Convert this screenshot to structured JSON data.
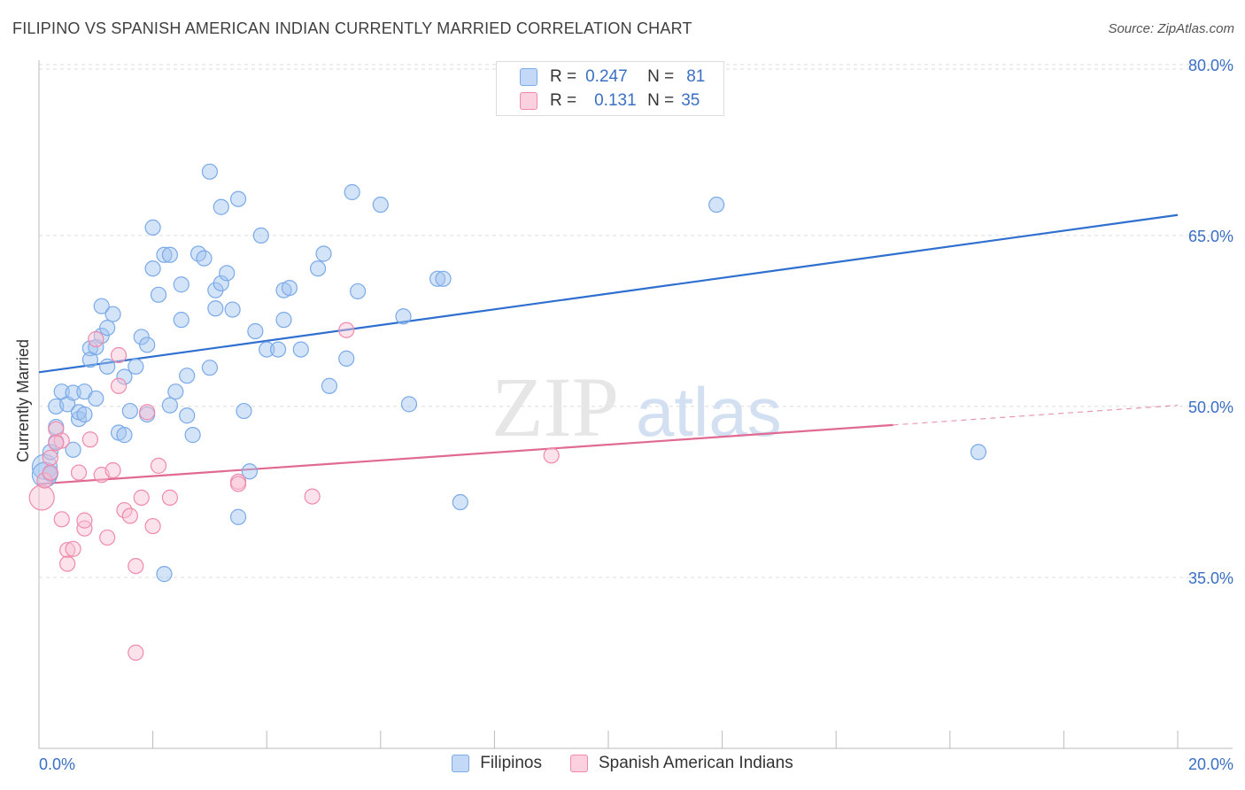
{
  "title": "FILIPINO VS SPANISH AMERICAN INDIAN CURRENTLY MARRIED CORRELATION CHART",
  "source": "Source: ZipAtlas.com",
  "watermark": {
    "zip": "ZIP",
    "atlas": "atlas"
  },
  "legend_top": {
    "rows": [
      {
        "r_label": "R =",
        "r_value": "0.247",
        "n_label": "N =",
        "n_value": "81",
        "color": "#7aaae8"
      },
      {
        "r_label": "R =",
        "r_value": "0.131",
        "n_label": "N =",
        "n_value": "35",
        "color": "#f08aaa"
      }
    ]
  },
  "legend_bottom": [
    {
      "label": "Filipinos",
      "color": "#7aaae8"
    },
    {
      "label": "Spanish American Indians",
      "color": "#f08aaa"
    }
  ],
  "chart_data": {
    "type": "scatter",
    "title": "FILIPINO VS SPANISH AMERICAN INDIAN CURRENTLY MARRIED CORRELATION CHART",
    "xlabel": "",
    "ylabel": "Currently Married",
    "xlim": [
      0,
      20
    ],
    "ylim": [
      20,
      81
    ],
    "x_tick_labels": [
      "0.0%",
      "20.0%"
    ],
    "y_ticks": [
      35,
      50,
      65,
      80
    ],
    "y_tick_labels": [
      "35.0%",
      "50.0%",
      "65.0%",
      "80.0%"
    ],
    "grid": "horizontal dashed",
    "legend_position": "top-center and bottom",
    "colors": {
      "filipinos": "#7aaae8",
      "spanish_american_indians": "#f08aaa",
      "filipinos_line": "#2f6fcf",
      "spanish_line": "#e06a92",
      "y_tick_text": "#3a6fc4"
    },
    "series": [
      {
        "name": "Filipinos",
        "r": 0.247,
        "n": 81,
        "trend": {
          "x0": 0,
          "y0": 53.0,
          "x1": 20,
          "y1": 66.8,
          "dashed_from": null
        },
        "points": [
          [
            0.1,
            44.7,
            "l"
          ],
          [
            0.1,
            44.0,
            "l"
          ],
          [
            0.2,
            46.0
          ],
          [
            0.2,
            44.1
          ],
          [
            0.3,
            50.0
          ],
          [
            0.3,
            46.9
          ],
          [
            0.3,
            48.2
          ],
          [
            0.4,
            51.3
          ],
          [
            0.5,
            50.2
          ],
          [
            0.6,
            51.2
          ],
          [
            0.6,
            46.2
          ],
          [
            0.7,
            48.9
          ],
          [
            0.7,
            49.5
          ],
          [
            0.8,
            49.3
          ],
          [
            0.8,
            51.3
          ],
          [
            0.9,
            55.1
          ],
          [
            0.9,
            54.1
          ],
          [
            1.0,
            55.2
          ],
          [
            1.0,
            50.7
          ],
          [
            1.1,
            56.2
          ],
          [
            1.1,
            58.8
          ],
          [
            1.2,
            53.5
          ],
          [
            1.2,
            56.9
          ],
          [
            1.3,
            58.1
          ],
          [
            1.4,
            47.7
          ],
          [
            1.5,
            47.5
          ],
          [
            1.5,
            52.6
          ],
          [
            1.6,
            49.6
          ],
          [
            1.7,
            53.5
          ],
          [
            1.8,
            56.1
          ],
          [
            1.9,
            49.3
          ],
          [
            1.9,
            55.4
          ],
          [
            2.0,
            62.1
          ],
          [
            2.0,
            65.7
          ],
          [
            2.1,
            59.8
          ],
          [
            2.2,
            63.3
          ],
          [
            2.2,
            35.3
          ],
          [
            2.3,
            63.3
          ],
          [
            2.3,
            50.1
          ],
          [
            2.4,
            51.3
          ],
          [
            2.5,
            60.7
          ],
          [
            2.5,
            57.6
          ],
          [
            2.6,
            52.7
          ],
          [
            2.6,
            49.2
          ],
          [
            2.7,
            47.5
          ],
          [
            2.8,
            63.4
          ],
          [
            2.9,
            63.0
          ],
          [
            3.0,
            53.4
          ],
          [
            3.0,
            70.6
          ],
          [
            3.1,
            58.6
          ],
          [
            3.1,
            60.2
          ],
          [
            3.2,
            67.5
          ],
          [
            3.2,
            60.8
          ],
          [
            3.3,
            61.7
          ],
          [
            3.4,
            58.5
          ],
          [
            3.5,
            68.2
          ],
          [
            3.5,
            40.3
          ],
          [
            3.6,
            49.6
          ],
          [
            3.7,
            44.3
          ],
          [
            3.8,
            56.6
          ],
          [
            3.9,
            65.0
          ],
          [
            4.0,
            55.0
          ],
          [
            4.2,
            55.0
          ],
          [
            4.3,
            60.2
          ],
          [
            4.3,
            57.6
          ],
          [
            4.4,
            60.4
          ],
          [
            4.6,
            55.0
          ],
          [
            4.9,
            62.1
          ],
          [
            5.0,
            63.4
          ],
          [
            5.1,
            51.8
          ],
          [
            5.4,
            54.2
          ],
          [
            5.5,
            68.8
          ],
          [
            5.6,
            60.1
          ],
          [
            6.0,
            67.7
          ],
          [
            6.4,
            57.9
          ],
          [
            6.5,
            50.2
          ],
          [
            7.0,
            61.2
          ],
          [
            7.1,
            61.2
          ],
          [
            7.4,
            41.6
          ],
          [
            11.9,
            67.7
          ],
          [
            16.5,
            46.0
          ]
        ]
      },
      {
        "name": "Spanish American Indians",
        "r": 0.131,
        "n": 35,
        "trend": {
          "x0": 0,
          "y0": 43.2,
          "x1": 20,
          "y1": 50.1,
          "dashed_from": 15.0
        },
        "points": [
          [
            0.05,
            42.0,
            "l"
          ],
          [
            0.1,
            43.5
          ],
          [
            0.2,
            45.5
          ],
          [
            0.2,
            44.2
          ],
          [
            0.3,
            48.0
          ],
          [
            0.4,
            40.1
          ],
          [
            0.4,
            47.0
          ],
          [
            0.5,
            37.4
          ],
          [
            0.5,
            36.2
          ],
          [
            0.6,
            37.5
          ],
          [
            0.7,
            44.2
          ],
          [
            0.8,
            39.3
          ],
          [
            0.8,
            40.0
          ],
          [
            0.9,
            47.1
          ],
          [
            1.0,
            55.9
          ],
          [
            1.1,
            44.0
          ],
          [
            1.2,
            38.5
          ],
          [
            1.3,
            44.4
          ],
          [
            1.4,
            54.5
          ],
          [
            1.4,
            51.8
          ],
          [
            1.5,
            40.9
          ],
          [
            1.6,
            40.4
          ],
          [
            1.7,
            28.4
          ],
          [
            1.7,
            36.0
          ],
          [
            1.8,
            42.0
          ],
          [
            1.9,
            49.5
          ],
          [
            2.0,
            39.5
          ],
          [
            2.1,
            44.8
          ],
          [
            2.3,
            42.0
          ],
          [
            3.5,
            43.4
          ],
          [
            3.5,
            43.2
          ],
          [
            4.8,
            42.1
          ],
          [
            5.4,
            56.7
          ],
          [
            9.0,
            45.7
          ],
          [
            0.3,
            46.8
          ]
        ]
      }
    ]
  }
}
